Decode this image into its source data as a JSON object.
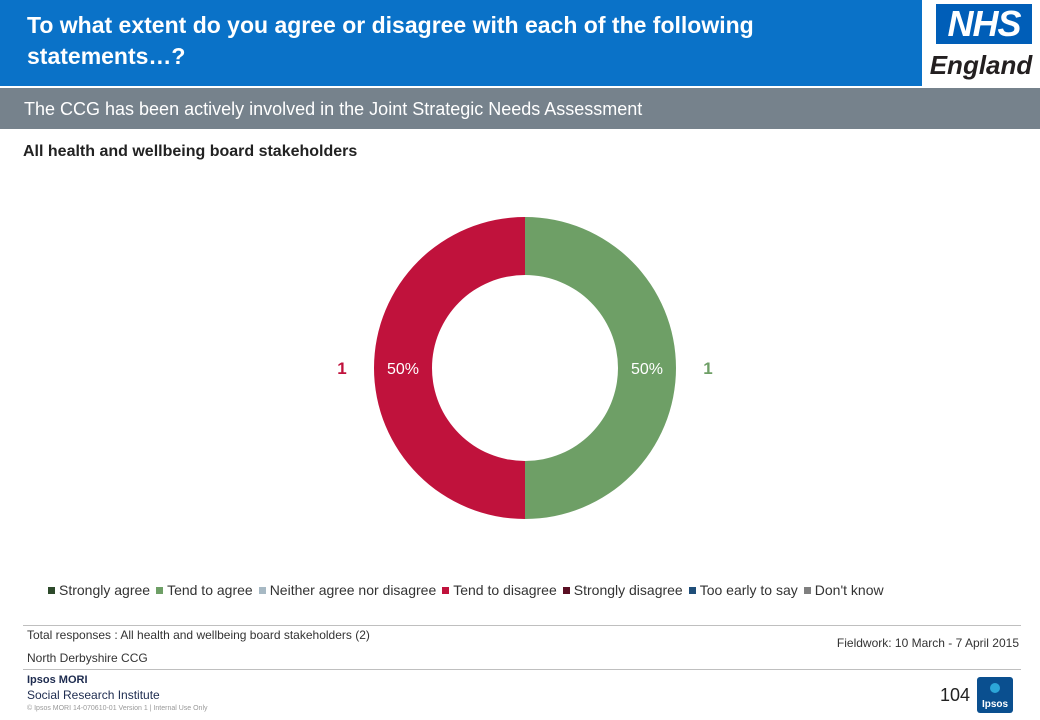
{
  "header": {
    "title": "To what extent do you agree or disagree with each of the following statements…?",
    "logo_nhs": "NHS",
    "logo_region": "England"
  },
  "subheader": {
    "statement": "The CCG has been actively involved in the Joint Strategic Needs Assessment"
  },
  "group_label": "All health and wellbeing board stakeholders",
  "chart_data": {
    "type": "pie",
    "style": "donut",
    "categories": [
      "Strongly agree",
      "Tend to agree",
      "Neither agree nor disagree",
      "Tend to disagree",
      "Strongly disagree",
      "Too early to say",
      "Don't know"
    ],
    "colors": [
      "#2d4a2b",
      "#6e9f66",
      "#a7b9c4",
      "#c0123c",
      "#5a0f23",
      "#1f4e79",
      "#7f7f7f"
    ],
    "percent_labels": [
      "",
      "50%",
      "",
      "50%",
      "",
      "",
      ""
    ],
    "values": [
      0,
      50,
      0,
      50,
      0,
      0,
      0
    ],
    "counts": [
      "",
      "1",
      "",
      "1",
      "",
      "",
      ""
    ],
    "legend_position": "bottom"
  },
  "footer": {
    "total_responses": "Total responses : All health and wellbeing board stakeholders (2)",
    "ccg": "North Derbyshire CCG",
    "fieldwork": "Fieldwork: 10 March - 7 April 2015",
    "ipsos_name": "Ipsos MORI",
    "ipsos_sub": "Social Research Institute",
    "copyright": "© Ipsos MORI    14-070610-01  Version 1 | Internal Use Only",
    "page_number": "104",
    "ipsos_logo_text": "Ipsos"
  }
}
